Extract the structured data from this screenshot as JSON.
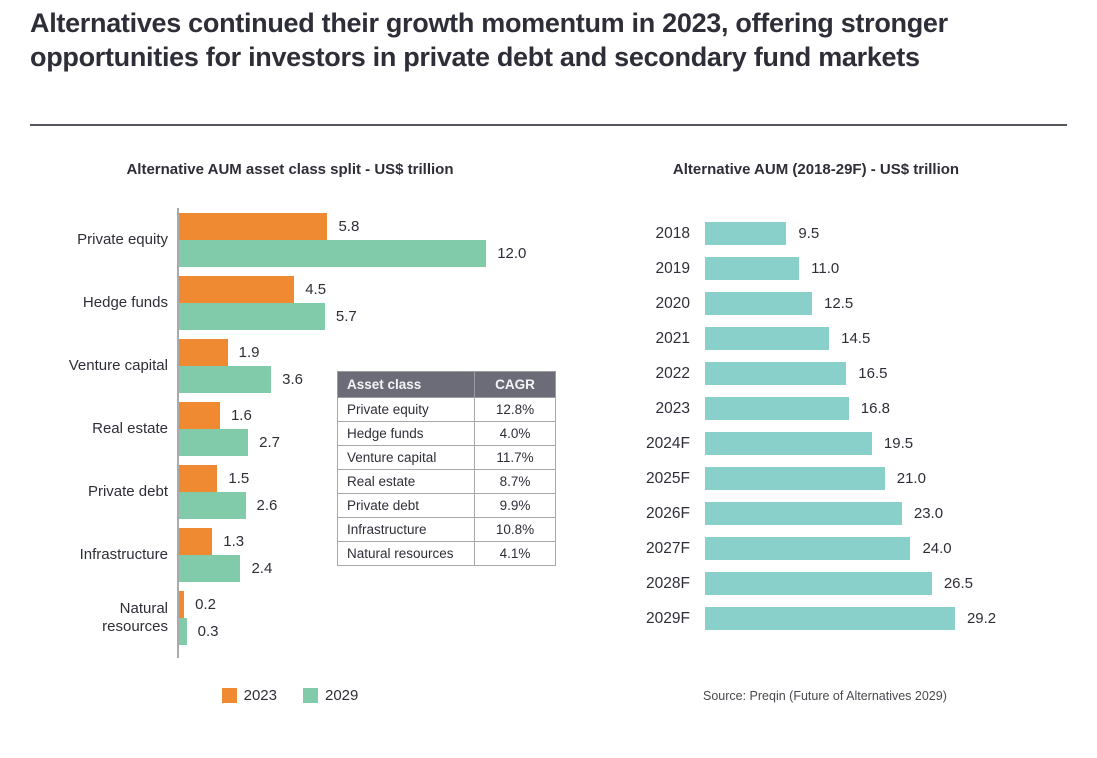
{
  "page": {
    "title": "Alternatives continued their growth momentum in 2023, offering stronger opportunities for investors in private debt and secondary fund markets"
  },
  "colors": {
    "accent_orange": "#EF8A33",
    "teal_2029": "#82CBAA",
    "teal_timeline": "#8AD0CA",
    "dark_text": "#2E2E38",
    "axis_gray": "#A8AAAE",
    "table_header_bg": "#6B6C77"
  },
  "source": "Source: Preqin (Future of Alternatives 2029)",
  "chart_data": [
    {
      "type": "bar",
      "orientation": "horizontal",
      "title": "Alternative AUM asset class split - US$ trillion",
      "categories": [
        "Private equity",
        "Hedge funds",
        "Venture capital",
        "Real estate",
        "Private debt",
        "Infrastructure",
        "Natural resources"
      ],
      "series": [
        {
          "name": "2023",
          "color": "#EF8A33",
          "values": [
            5.8,
            4.5,
            1.9,
            1.6,
            1.5,
            1.3,
            0.2
          ]
        },
        {
          "name": "2029",
          "color": "#82CBAA",
          "values": [
            12.0,
            5.7,
            3.6,
            2.7,
            2.6,
            2.4,
            0.3
          ]
        }
      ],
      "xlim": [
        0,
        12.5
      ],
      "grid": false,
      "legend_position": "bottom",
      "value_labels": true
    },
    {
      "type": "table",
      "headers": [
        "Asset class",
        "CAGR"
      ],
      "rows": [
        [
          "Private equity",
          "12.8%"
        ],
        [
          "Hedge funds",
          "4.0%"
        ],
        [
          "Venture capital",
          "11.7%"
        ],
        [
          "Real estate",
          "8.7%"
        ],
        [
          "Private debt",
          "9.9%"
        ],
        [
          "Infrastructure",
          "10.8%"
        ],
        [
          "Natural resources",
          "4.1%"
        ]
      ]
    },
    {
      "type": "bar",
      "orientation": "horizontal",
      "title": "Alternative AUM (2018-29F) - US$ trillion",
      "categories": [
        "2018",
        "2019",
        "2020",
        "2021",
        "2022",
        "2023",
        "2024F",
        "2025F",
        "2026F",
        "2027F",
        "2028F",
        "2029F"
      ],
      "values": [
        9.5,
        11.0,
        12.5,
        14.5,
        16.5,
        16.8,
        19.5,
        21.0,
        23.0,
        24.0,
        26.5,
        29.2
      ],
      "color": "#8AD0CA",
      "xlim": [
        0,
        30
      ],
      "grid": false,
      "value_labels": true
    }
  ]
}
